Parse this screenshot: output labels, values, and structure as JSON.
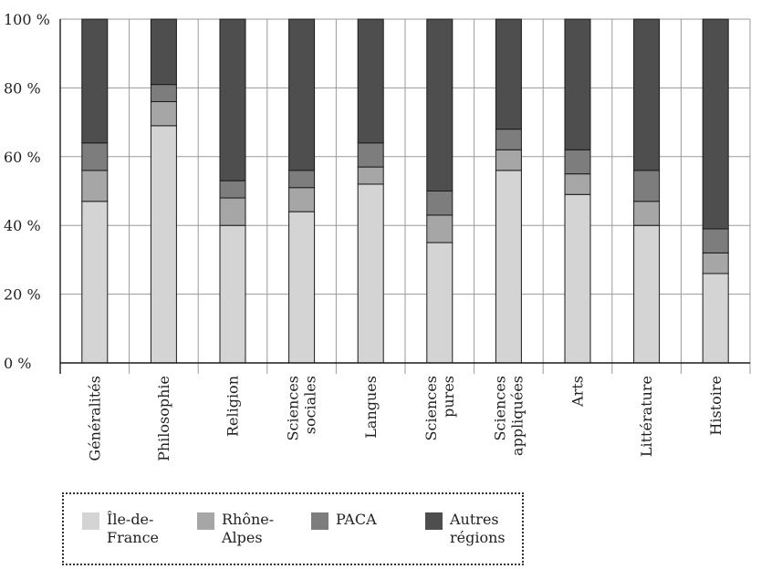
{
  "chart_data": {
    "type": "bar",
    "stacked": true,
    "title": "",
    "xlabel": "",
    "ylabel": "",
    "ylim": [
      0,
      100
    ],
    "grid": true,
    "legend_position": "bottom-left",
    "y_ticks": [
      0,
      20,
      40,
      60,
      80,
      100
    ],
    "y_tick_labels": [
      "0 %",
      "20 %",
      "40 %",
      "60 %",
      "80 %",
      "100 %"
    ],
    "categories": [
      "Généralités",
      "Philosophie",
      "Religion",
      "Sciences\nsociales",
      "Langues",
      "Sciences\npures",
      "Sciences\nappliquées",
      "Arts",
      "Littérature",
      "Histoire"
    ],
    "series": [
      {
        "name": "Île-de-\nFrance",
        "color": "#d4d4d4",
        "values": [
          47,
          69,
          40,
          44,
          52,
          35,
          56,
          49,
          40,
          26
        ]
      },
      {
        "name": "Rhône-\nAlpes",
        "color": "#a6a6a6",
        "values": [
          9,
          7,
          8,
          7,
          5,
          8,
          6,
          6,
          7,
          6
        ]
      },
      {
        "name": "PACA",
        "color": "#7d7d7d",
        "values": [
          8,
          5,
          5,
          5,
          7,
          7,
          6,
          7,
          9,
          7
        ]
      },
      {
        "name": "Autres\nrégions",
        "color": "#4e4e4e",
        "values": [
          36,
          19,
          47,
          44,
          36,
          50,
          32,
          38,
          44,
          61
        ]
      }
    ]
  }
}
